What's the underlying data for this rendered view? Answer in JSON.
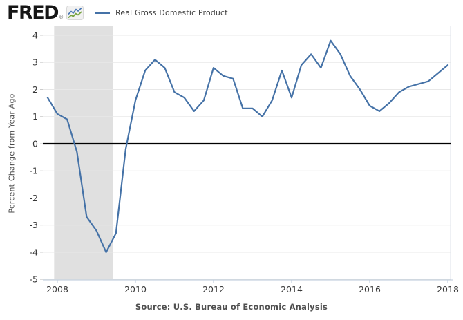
{
  "header": {
    "logo_text": "FRED",
    "logo_registered": "®",
    "legend": {
      "label": "Real Gross Domestic Product"
    }
  },
  "footer": {
    "source": "Source: U.S. Bureau of Economic Analysis"
  },
  "colors": {
    "line": "#4572a7",
    "recession_band": "#e0e0e0",
    "gridline": "#e8e8e8",
    "zero_line": "#000000",
    "x_axis": "#b9c7d8",
    "right_border": "#dde2e8",
    "y_tick_mark": "#cccccc",
    "tick_label": "#383838"
  },
  "chart_data": {
    "type": "line",
    "title": "Real Gross Domestic Product",
    "ylabel": "Percent Change from Year Ago",
    "xlabel": "",
    "grid": true,
    "legend_position": "top-left",
    "zero_line": true,
    "y_ticks": [
      4,
      3,
      2,
      1,
      0,
      -1,
      -2,
      -3,
      -4,
      -5
    ],
    "ylim": [
      -5.02,
      4.33
    ],
    "x_ticks": [
      2008,
      2010,
      2012,
      2014,
      2016,
      2018
    ],
    "xlim_years": [
      2007.628,
      2018.071
    ],
    "recession_shading": {
      "start_year": 2007.917,
      "end_year": 2009.417,
      "note": "recession band Dec 2007 - Jun 2009"
    },
    "units": "Percent Change from Year Ago, Quarterly",
    "series": [
      {
        "name": "Real Gross Domestic Product",
        "color": "#4572a7",
        "points": [
          {
            "q": "2007 Q4",
            "t": 2007.75,
            "v": 1.7
          },
          {
            "q": "2008 Q1",
            "t": 2008.0,
            "v": 1.1
          },
          {
            "q": "2008 Q2",
            "t": 2008.25,
            "v": 0.9
          },
          {
            "q": "2008 Q3",
            "t": 2008.5,
            "v": -0.3
          },
          {
            "q": "2008 Q4",
            "t": 2008.75,
            "v": -2.7
          },
          {
            "q": "2009 Q1",
            "t": 2009.0,
            "v": -3.2
          },
          {
            "q": "2009 Q2",
            "t": 2009.25,
            "v": -4.0
          },
          {
            "q": "2009 Q3",
            "t": 2009.5,
            "v": -3.3
          },
          {
            "q": "2009 Q4",
            "t": 2009.75,
            "v": -0.2
          },
          {
            "q": "2010 Q1",
            "t": 2010.0,
            "v": 1.6
          },
          {
            "q": "2010 Q2",
            "t": 2010.25,
            "v": 2.7
          },
          {
            "q": "2010 Q3",
            "t": 2010.5,
            "v": 3.1
          },
          {
            "q": "2010 Q4",
            "t": 2010.75,
            "v": 2.8
          },
          {
            "q": "2011 Q1",
            "t": 2011.0,
            "v": 1.9
          },
          {
            "q": "2011 Q2",
            "t": 2011.25,
            "v": 1.7
          },
          {
            "q": "2011 Q3",
            "t": 2011.5,
            "v": 1.2
          },
          {
            "q": "2011 Q4",
            "t": 2011.75,
            "v": 1.6
          },
          {
            "q": "2012 Q1",
            "t": 2012.0,
            "v": 2.8
          },
          {
            "q": "2012 Q2",
            "t": 2012.25,
            "v": 2.5
          },
          {
            "q": "2012 Q3",
            "t": 2012.5,
            "v": 2.4
          },
          {
            "q": "2012 Q4",
            "t": 2012.75,
            "v": 1.3
          },
          {
            "q": "2013 Q1",
            "t": 2013.0,
            "v": 1.3
          },
          {
            "q": "2013 Q2",
            "t": 2013.25,
            "v": 1.0
          },
          {
            "q": "2013 Q3",
            "t": 2013.5,
            "v": 1.6
          },
          {
            "q": "2013 Q4",
            "t": 2013.75,
            "v": 2.7
          },
          {
            "q": "2014 Q1",
            "t": 2014.0,
            "v": 1.7
          },
          {
            "q": "2014 Q2",
            "t": 2014.25,
            "v": 2.9
          },
          {
            "q": "2014 Q3",
            "t": 2014.5,
            "v": 3.3
          },
          {
            "q": "2014 Q4",
            "t": 2014.75,
            "v": 2.8
          },
          {
            "q": "2015 Q1",
            "t": 2015.0,
            "v": 3.8
          },
          {
            "q": "2015 Q2",
            "t": 2015.25,
            "v": 3.3
          },
          {
            "q": "2015 Q3",
            "t": 2015.5,
            "v": 2.5
          },
          {
            "q": "2015 Q4",
            "t": 2015.75,
            "v": 2.0
          },
          {
            "q": "2016 Q1",
            "t": 2016.0,
            "v": 1.4
          },
          {
            "q": "2016 Q2",
            "t": 2016.25,
            "v": 1.2
          },
          {
            "q": "2016 Q3",
            "t": 2016.5,
            "v": 1.5
          },
          {
            "q": "2016 Q4",
            "t": 2016.75,
            "v": 1.9
          },
          {
            "q": "2017 Q1",
            "t": 2017.0,
            "v": 2.1
          },
          {
            "q": "2017 Q2",
            "t": 2017.25,
            "v": 2.2
          },
          {
            "q": "2017 Q3",
            "t": 2017.5,
            "v": 2.3
          },
          {
            "q": "2017 Q4",
            "t": 2017.75,
            "v": 2.6
          },
          {
            "q": "2018 Q1",
            "t": 2018.0,
            "v": 2.9
          }
        ]
      }
    ]
  }
}
